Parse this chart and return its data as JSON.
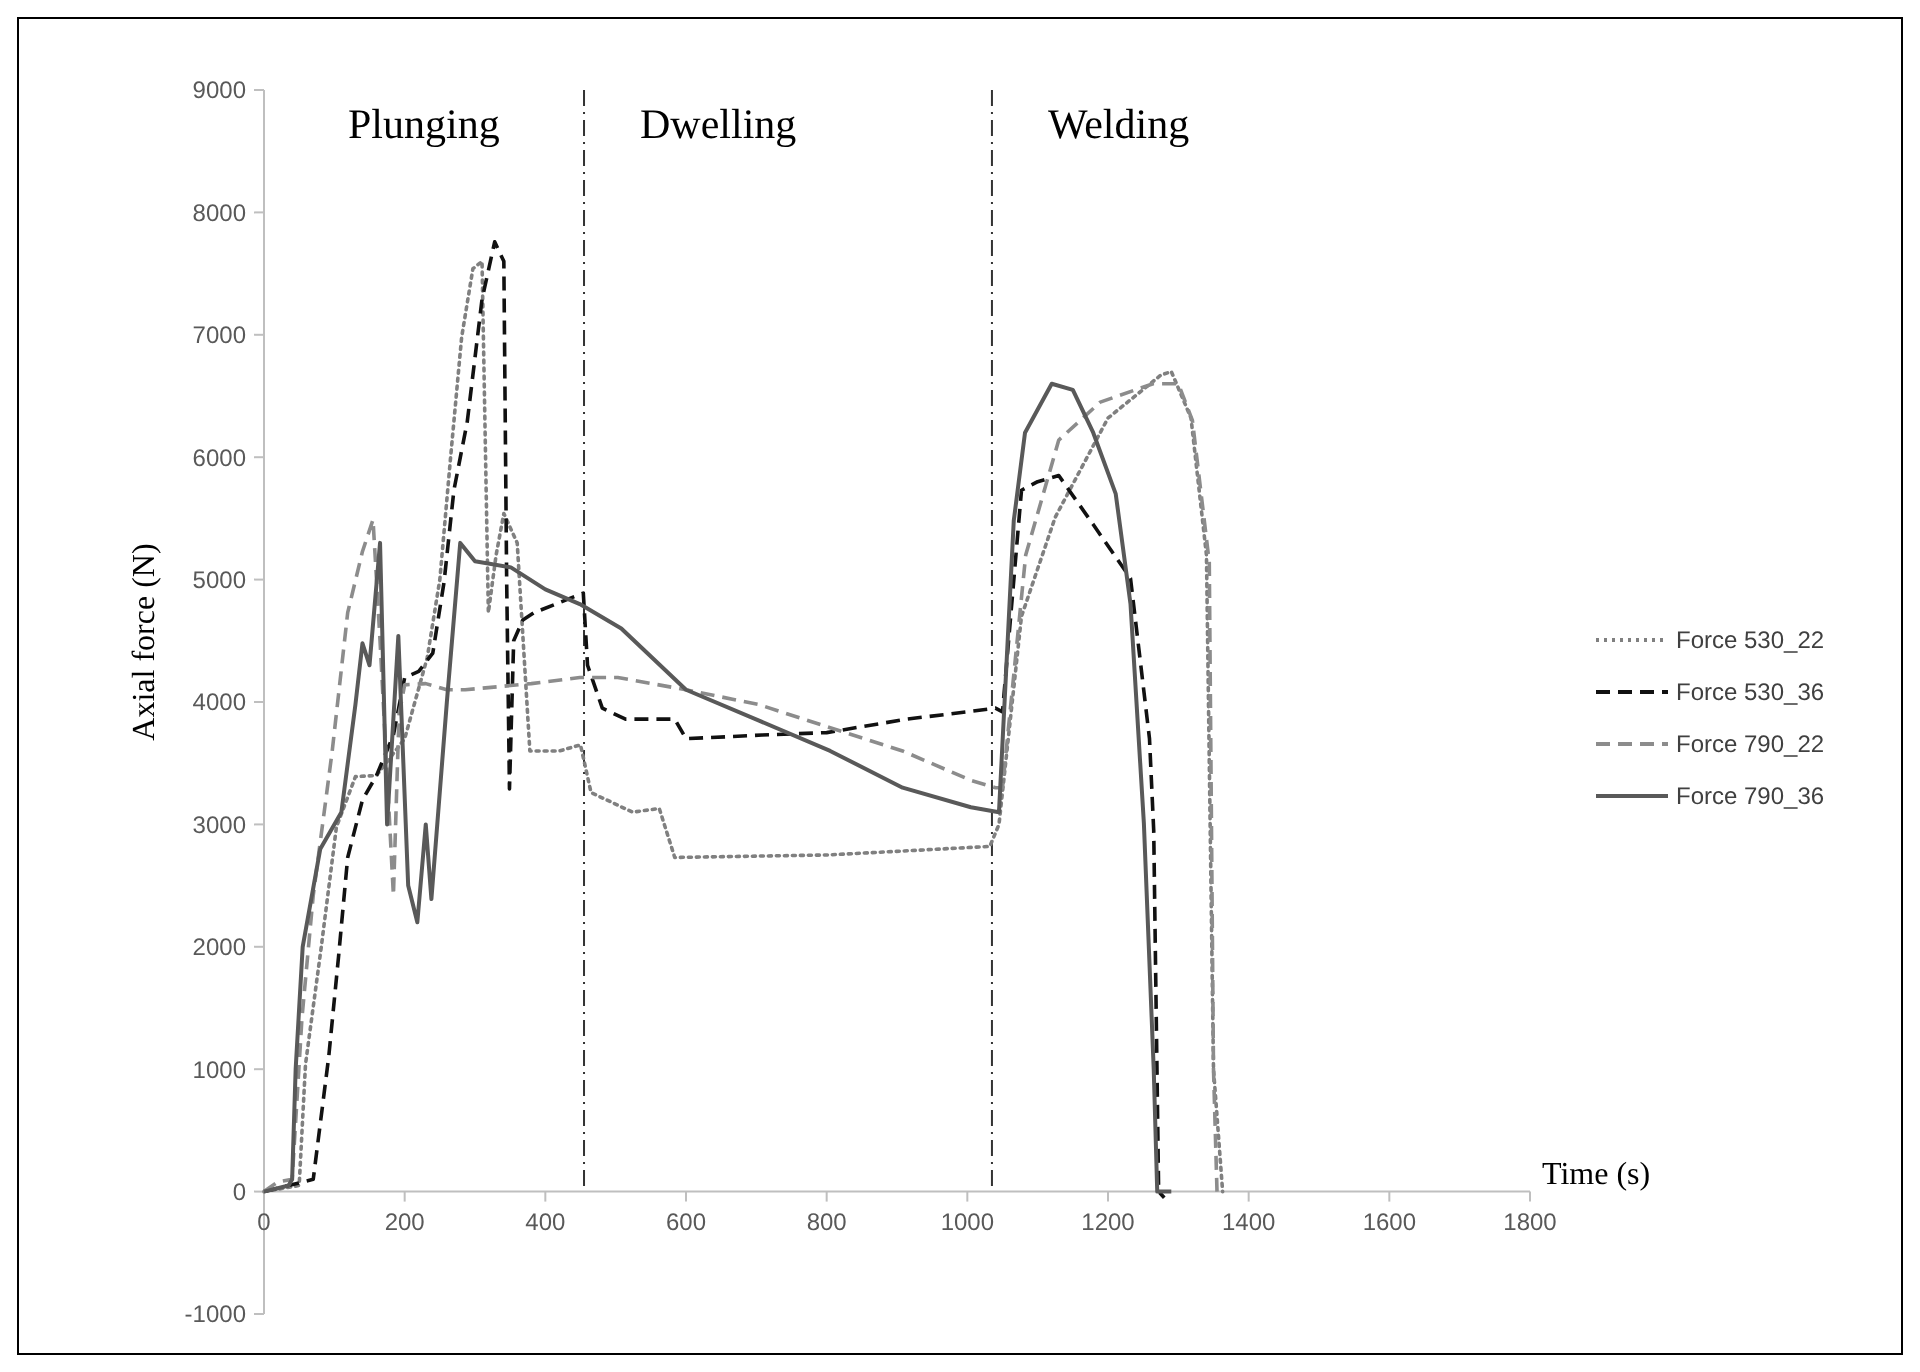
{
  "chart_data": {
    "type": "line",
    "xlabel": "Time (s)",
    "ylabel": "Axial force (N)",
    "xlim": [
      0,
      1800
    ],
    "xticks": [
      0,
      200,
      400,
      600,
      800,
      1000,
      1200,
      1400,
      1600,
      1800
    ],
    "ylim": [
      -1000,
      9000
    ],
    "yticks": [
      -1000,
      0,
      1000,
      2000,
      3000,
      4000,
      5000,
      6000,
      7000,
      8000,
      9000
    ],
    "grid": false,
    "legend": "right",
    "ref_lines": [
      {
        "axis": "x",
        "value": 455,
        "label": null,
        "color": "#333333",
        "line_style": "dashed"
      },
      {
        "axis": "x",
        "value": 1035,
        "label": null,
        "color": "#333333",
        "line_style": "dashed"
      }
    ],
    "annotations": [
      "Plunging",
      "Dwelling",
      "Welding"
    ],
    "series": [
      {
        "name": "Force 530_22",
        "color": "#808080",
        "line_style": "dotted",
        "x": [
          0,
          50,
          59,
          81,
          103,
          130,
          160,
          200,
          232,
          250,
          265,
          281,
          297,
          310,
          319,
          330,
          341,
          360,
          378,
          420,
          450,
          465,
          524,
          562,
          584,
          800,
          1032,
          1045,
          1077,
          1125,
          1200,
          1275,
          1290,
          1318,
          1340,
          1350,
          1363
        ],
        "values": [
          0,
          50,
          1040,
          1980,
          2980,
          3390,
          3400,
          3700,
          4360,
          5000,
          5980,
          6980,
          7540,
          7600,
          4730,
          5200,
          5540,
          5300,
          3600,
          3600,
          3650,
          3260,
          3100,
          3130,
          2730,
          2750,
          2820,
          3000,
          4700,
          5510,
          6320,
          6670,
          6700,
          6320,
          5200,
          1000,
          0
        ]
      },
      {
        "name": "Force 530_36",
        "color": "#111111",
        "line_style": "dashed",
        "x": [
          0,
          70,
          92,
          106,
          119,
          140,
          160,
          184,
          200,
          220,
          240,
          256,
          270,
          289,
          310,
          328,
          341,
          345,
          349,
          355,
          368,
          384,
          454,
          460,
          481,
          514,
          584,
          600,
          708,
          800,
          914,
          1000,
          1040,
          1050,
          1077,
          1100,
          1130,
          1179,
          1232,
          1259,
          1265,
          1272,
          1280
        ],
        "values": [
          0,
          100,
          1100,
          1920,
          2730,
          3200,
          3400,
          3730,
          4200,
          4250,
          4400,
          4980,
          5730,
          6290,
          7290,
          7760,
          7600,
          5000,
          3290,
          4500,
          4670,
          4730,
          4890,
          4300,
          3950,
          3860,
          3860,
          3700,
          3730,
          3750,
          3860,
          3920,
          3950,
          3920,
          5730,
          5800,
          5850,
          5450,
          5010,
          3700,
          2950,
          0,
          -50
        ]
      },
      {
        "name": "Force 790_22",
        "color": "#8c8c8c",
        "line_style": "dashed",
        "x": [
          0,
          20,
          40,
          54,
          70,
          97,
          119,
          140,
          155,
          165,
          184,
          192,
          200,
          230,
          260,
          286,
          380,
          449,
          503,
          600,
          703,
          805,
          908,
          1005,
          1040,
          1050,
          1083,
          1130,
          1189,
          1264,
          1300,
          1320,
          1344,
          1350,
          1355
        ],
        "values": [
          0,
          80,
          100,
          1420,
          2420,
          3600,
          4730,
          5230,
          5490,
          4500,
          2420,
          3900,
          4140,
          4150,
          4100,
          4100,
          4150,
          4200,
          4200,
          4100,
          3980,
          3790,
          3600,
          3360,
          3300,
          3300,
          5200,
          6140,
          6450,
          6600,
          6600,
          6300,
          5140,
          1000,
          0
        ]
      },
      {
        "name": "Force 790_36",
        "color": "#595959",
        "line_style": "solid",
        "x": [
          0,
          35,
          40,
          45,
          55,
          80,
          110,
          130,
          140,
          150,
          165,
          175,
          191,
          205,
          218,
          230,
          238,
          260,
          279,
          300,
          351,
          400,
          449,
          508,
          600,
          703,
          805,
          908,
          1005,
          1045,
          1066,
          1082,
          1120,
          1150,
          1179,
          1211,
          1232,
          1251,
          1265,
          1270,
          1290
        ],
        "values": [
          0,
          50,
          100,
          1000,
          2000,
          2800,
          3100,
          3980,
          4480,
          4300,
          5300,
          3000,
          4540,
          2500,
          2200,
          3000,
          2390,
          4000,
          5300,
          5150,
          5100,
          4920,
          4800,
          4600,
          4100,
          3850,
          3600,
          3300,
          3140,
          3100,
          5480,
          6200,
          6600,
          6550,
          6200,
          5700,
          4800,
          3010,
          1000,
          0,
          0
        ]
      }
    ]
  }
}
